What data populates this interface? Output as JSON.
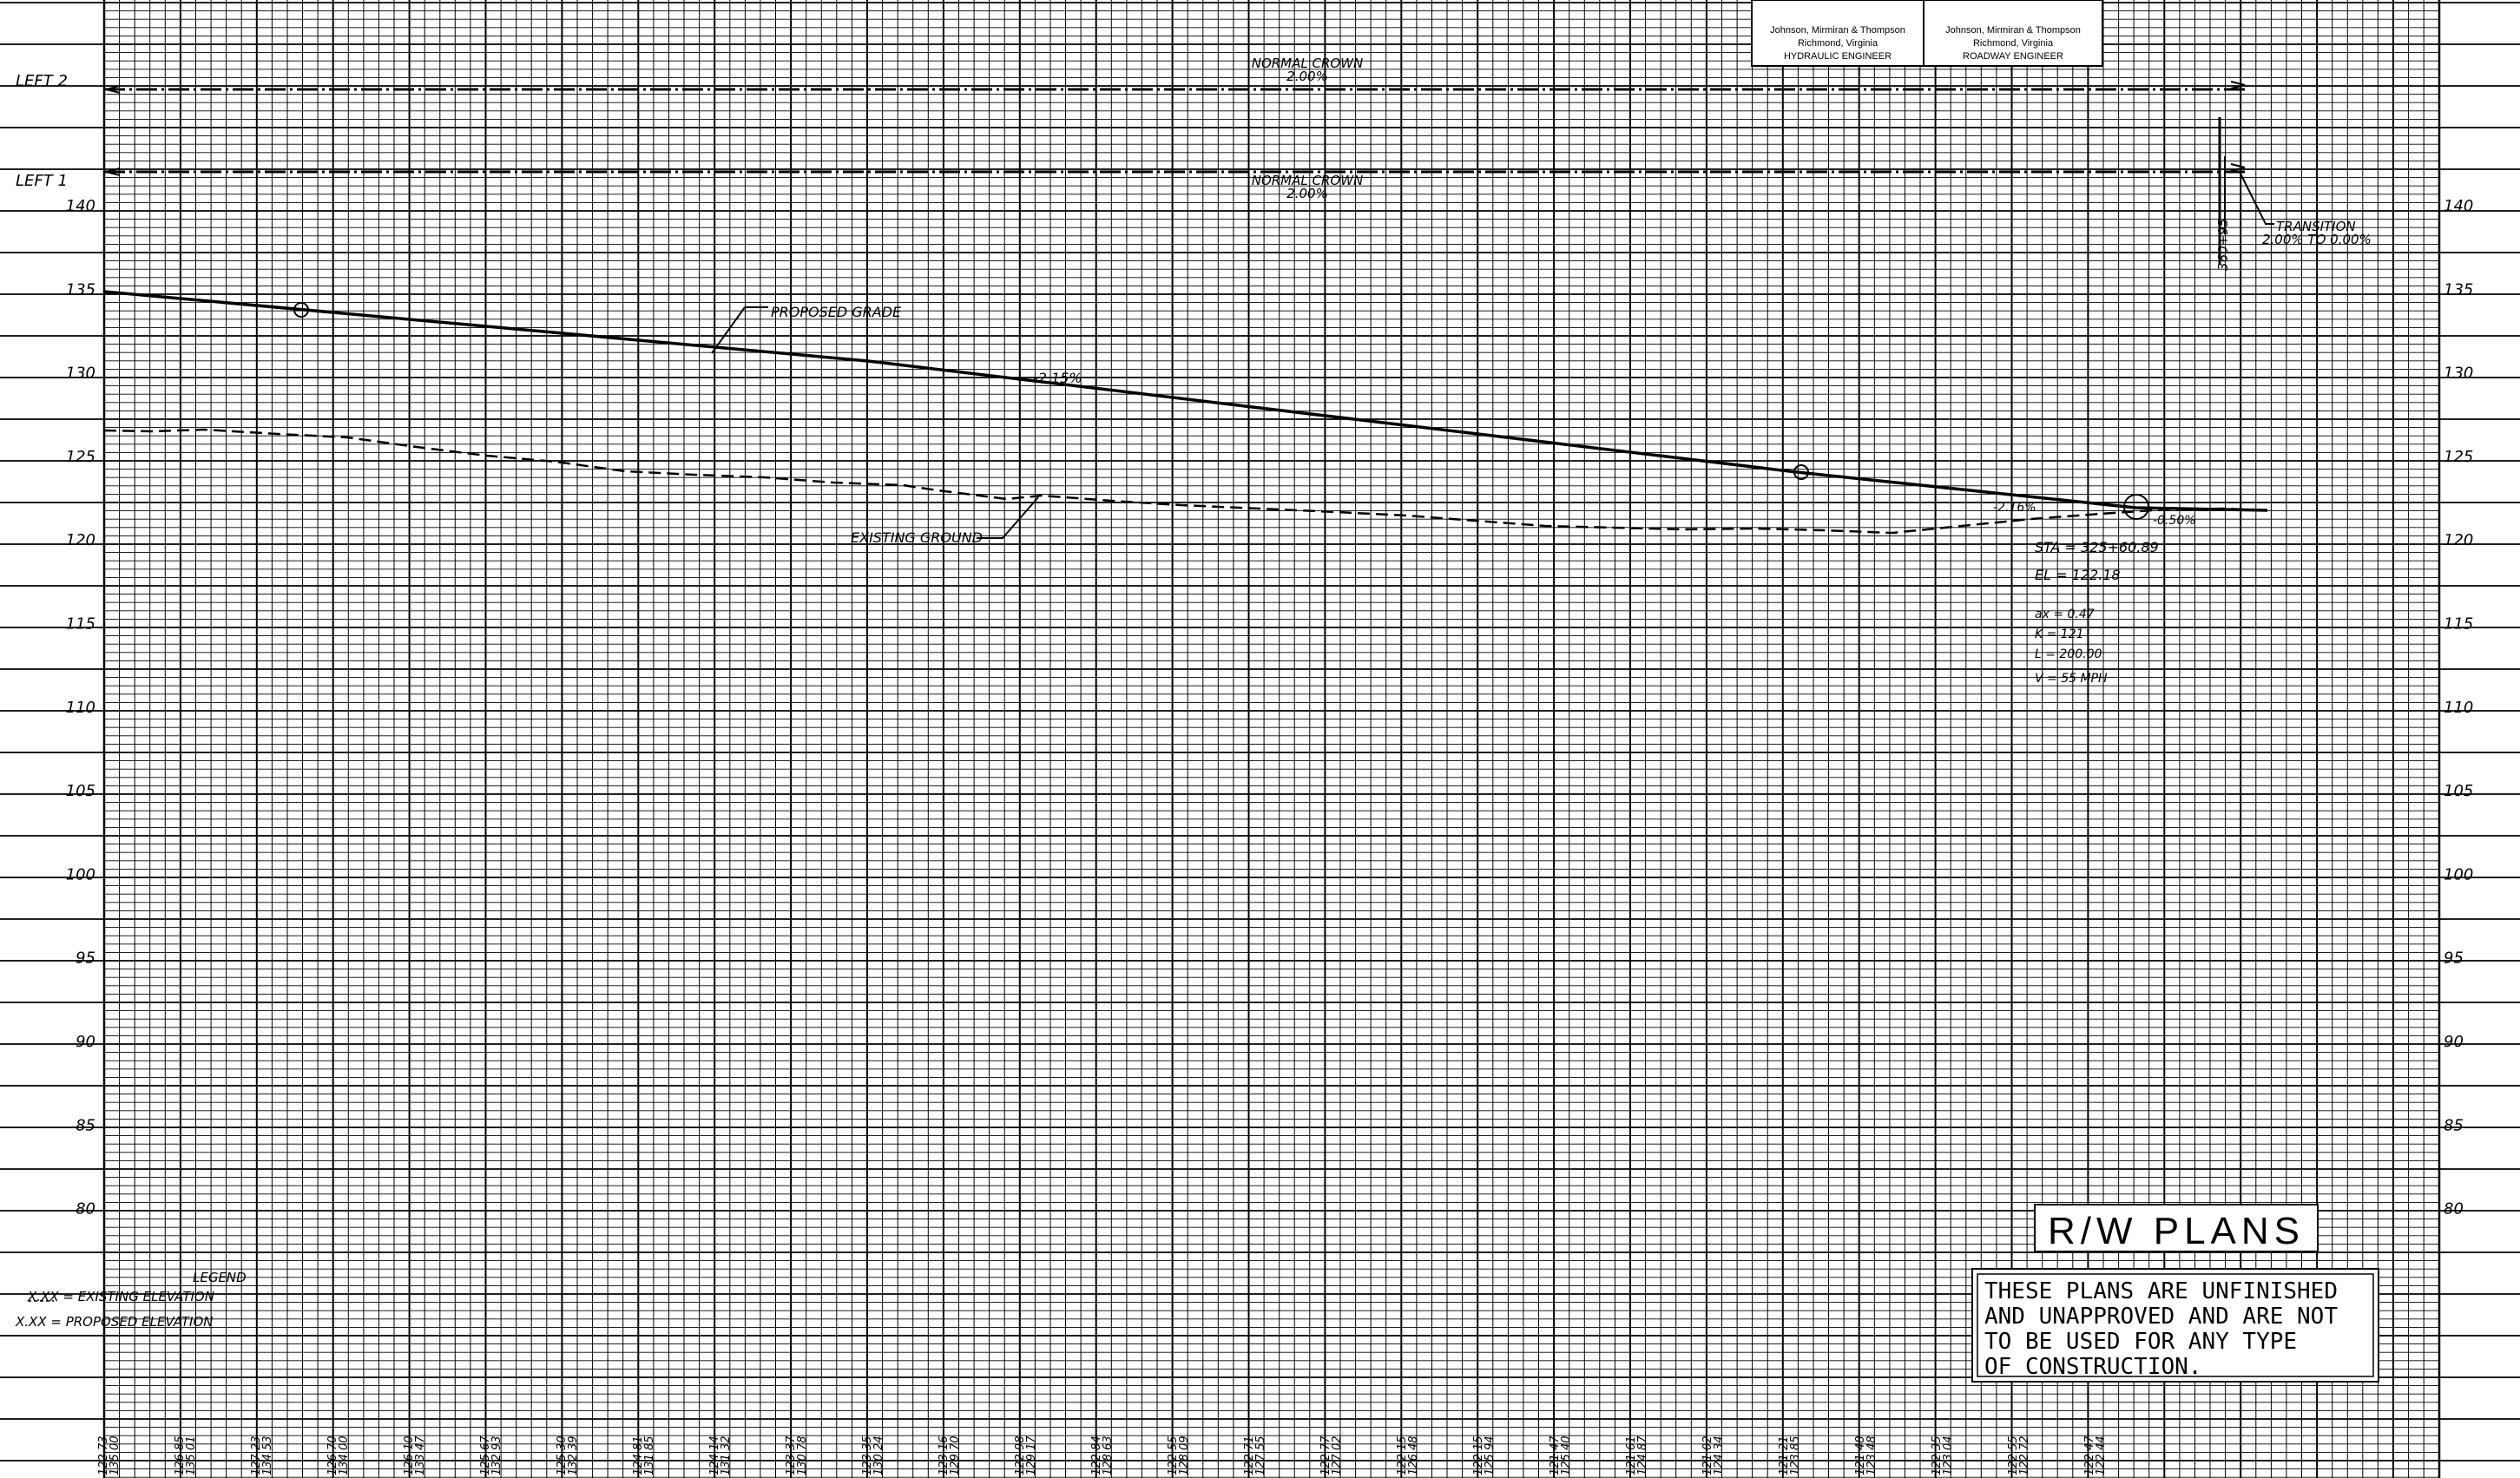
{
  "title_block": {
    "hydraulic": {
      "firm": "Johnson, Mirmiran & Thompson",
      "city": "Richmond, Virginia",
      "role": "HYDRAULIC ENGINEER"
    },
    "roadway": {
      "firm": "Johnson, Mirmiran & Thompson",
      "city": "Richmond, Virginia",
      "role": "ROADWAY ENGINEER"
    }
  },
  "superelevation": {
    "left2_label": "LEFT 2",
    "left1_label": "LEFT 1",
    "normal_crown": [
      {
        "label": "NORMAL CROWN",
        "value": "2.00%"
      },
      {
        "label": "NORMAL CROWN",
        "value": "2.00%"
      }
    ],
    "station_note": "360+95",
    "transition_label": "TRANSITION",
    "transition_value": "2.00% TO 0.00%"
  },
  "elevation_ticks": [
    "140",
    "135",
    "130",
    "125",
    "120",
    "115",
    "110",
    "105",
    "100",
    "95",
    "90",
    "85",
    "80"
  ],
  "grade_labels": {
    "proposed_grade": "PROPOSED GRADE",
    "existing_ground": "EXISTING GROUND",
    "slope_1": "-2.15%",
    "slope_2": "-2.16%",
    "slope_3": "-0.50%"
  },
  "vpi_data": {
    "sta": "STA = 325+60.89",
    "el": "EL = 122.18",
    "ax": "ax = 0.47",
    "k": "K = 121",
    "l": "L = 200.00",
    "v": "V = 55 MPH"
  },
  "legend": {
    "title": "LEGEND",
    "existing": "X.XX = EXISTING ELEVATION",
    "proposed": "X.XX = PROPOSED ELEVATION"
  },
  "rw_plans": "R/W PLANS",
  "disclaimer": [
    "THESE PLANS ARE UNFINISHED",
    "AND UNAPPROVED AND ARE NOT",
    "TO BE USED FOR ANY TYPE",
    "OF CONSTRUCTION."
  ],
  "bottom_labels": [
    {
      "top": "122.73",
      "bottom": "135.00"
    },
    {
      "top": "126.85",
      "bottom": "135.01"
    },
    {
      "top": "127.23",
      "bottom": "134.53"
    },
    {
      "top": "126.70",
      "bottom": "134.00"
    },
    {
      "top": "126.10",
      "bottom": "133.47"
    },
    {
      "top": "125.67",
      "bottom": "132.93"
    },
    {
      "top": "125.30",
      "bottom": "132.39"
    },
    {
      "top": "124.81",
      "bottom": "131.85"
    },
    {
      "top": "124.14",
      "bottom": "131.32"
    },
    {
      "top": "123.37",
      "bottom": "130.78"
    },
    {
      "top": "123.35",
      "bottom": "130.24"
    },
    {
      "top": "123.16",
      "bottom": "129.70"
    },
    {
      "top": "122.98",
      "bottom": "129.17"
    },
    {
      "top": "122.84",
      "bottom": "128.63"
    },
    {
      "top": "122.55",
      "bottom": "128.09"
    },
    {
      "top": "122.71",
      "bottom": "127.55"
    },
    {
      "top": "122.77",
      "bottom": "127.02"
    },
    {
      "top": "122.15",
      "bottom": "126.48"
    },
    {
      "top": "122.15",
      "bottom": "125.94"
    },
    {
      "top": "121.47",
      "bottom": "125.40"
    },
    {
      "top": "121.61",
      "bottom": "124.87"
    },
    {
      "top": "121.02",
      "bottom": "124.34"
    },
    {
      "top": "121.21",
      "bottom": "123.85"
    },
    {
      "top": "121.48",
      "bottom": "123.48"
    },
    {
      "top": "122.35",
      "bottom": "123.04"
    },
    {
      "top": "122.55",
      "bottom": "122.72"
    },
    {
      "top": "122.47",
      "bottom": "122.44"
    }
  ]
}
